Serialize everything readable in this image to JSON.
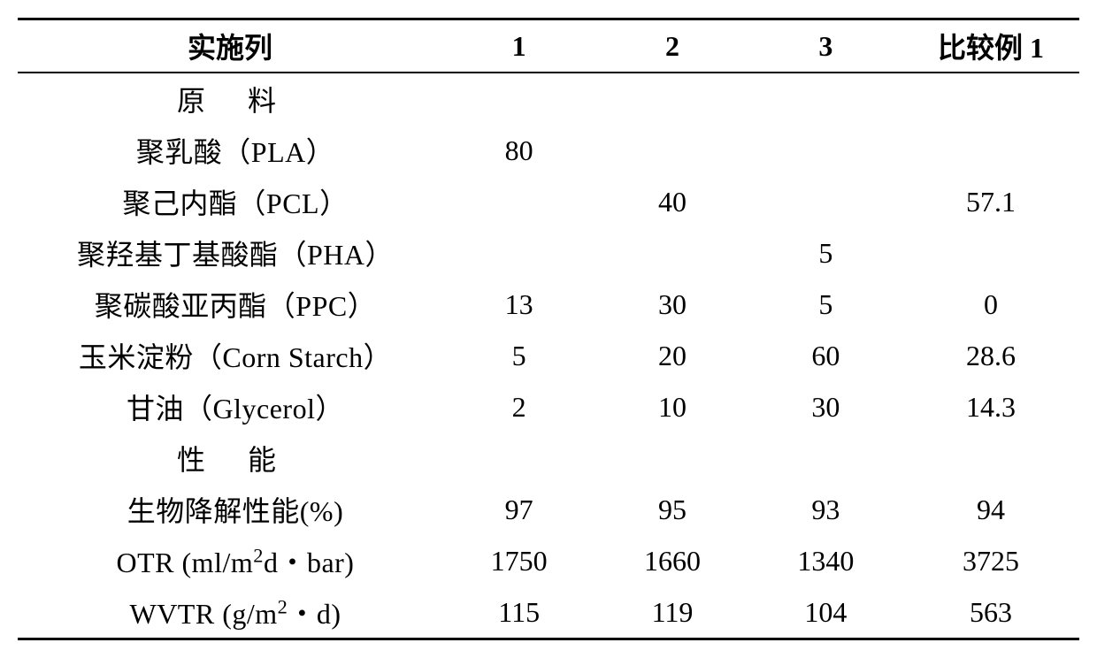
{
  "table": {
    "headers": {
      "label": "实施列",
      "col1": "1",
      "col2": "2",
      "col3": "3",
      "compare": "比较例 1"
    },
    "sections": {
      "materials": "原　料",
      "performance": "性　能"
    },
    "rows": {
      "pla": {
        "label": "聚乳酸（PLA）",
        "c1": "80",
        "c2": "",
        "c3": "",
        "cmp": ""
      },
      "pcl": {
        "label": "聚己内酯（PCL）",
        "c1": "",
        "c2": "40",
        "c3": "",
        "cmp": "57.1"
      },
      "pha": {
        "label": "聚羟基丁基酸酯（PHA）",
        "c1": "",
        "c2": "",
        "c3": "5",
        "cmp": ""
      },
      "ppc": {
        "label": "聚碳酸亚丙酯（PPC）",
        "c1": "13",
        "c2": "30",
        "c3": "5",
        "cmp": "0"
      },
      "cornstarch": {
        "label": "玉米淀粉（Corn Starch）",
        "c1": "5",
        "c2": "20",
        "c3": "60",
        "cmp": "28.6"
      },
      "glycerol": {
        "label": "甘油（Glycerol）",
        "c1": "2",
        "c2": "10",
        "c3": "30",
        "cmp": "14.3"
      },
      "biodeg": {
        "label": "生物降解性能(%)",
        "c1": "97",
        "c2": "95",
        "c3": "93",
        "cmp": "94"
      },
      "otr": {
        "label_prefix": "OTR (ml/m",
        "label_sup": "2",
        "label_suffix": "d・bar)",
        "c1": "1750",
        "c2": "1660",
        "c3": "1340",
        "cmp": "3725"
      },
      "wvtr": {
        "label_prefix": "WVTR (g/m",
        "label_sup": "2",
        "label_suffix": "・d)",
        "c1": "115",
        "c2": "119",
        "c3": "104",
        "cmp": "563"
      }
    },
    "styling": {
      "font_size_pt": 32,
      "text_color": "#000000",
      "background_color": "#ffffff",
      "border_color": "#000000",
      "top_border_width": 3,
      "header_border_width": 2,
      "bottom_border_width": 3
    }
  }
}
